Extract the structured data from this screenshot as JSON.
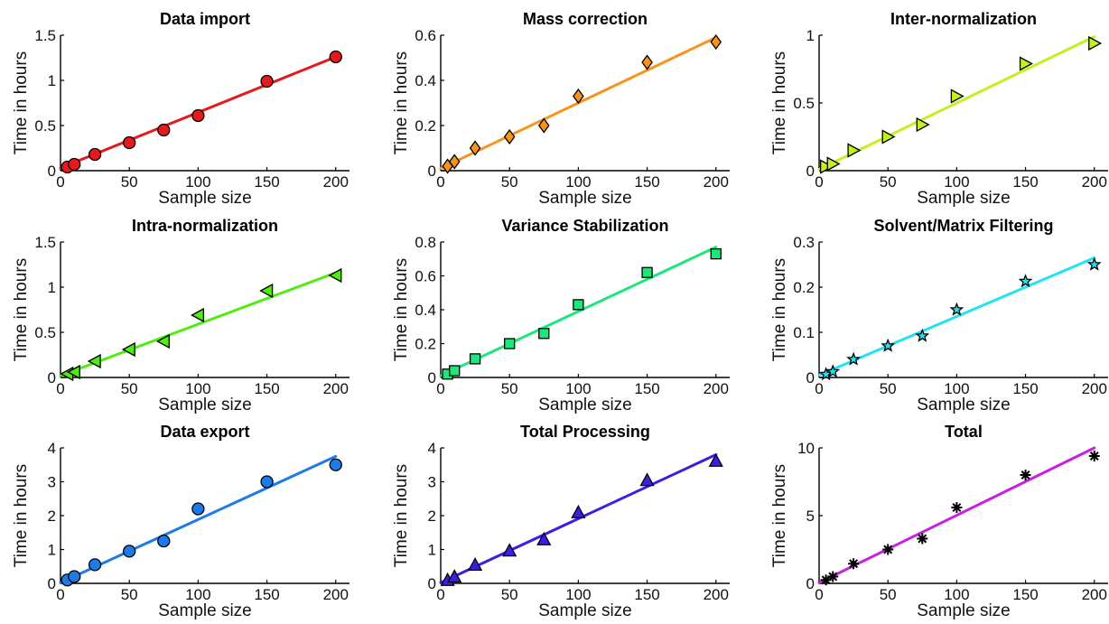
{
  "chart_data": [
    {
      "type": "scatter",
      "title": "Data import",
      "xlabel": "Sample size",
      "ylabel": "Time in hours",
      "xlim": [
        0,
        210
      ],
      "ylim": [
        0,
        1.5
      ],
      "xticks": [
        0,
        50,
        100,
        150,
        200
      ],
      "xtick_labels": [
        "0",
        "50",
        "100",
        "150",
        "200"
      ],
      "yticks": [
        0,
        0.5,
        1,
        1.5
      ],
      "ytick_labels": [
        "0",
        "0.5",
        "1",
        "1.5"
      ],
      "marker": "circle",
      "color": "#e41a1c",
      "series": [
        {
          "x": [
            5,
            10,
            25,
            50,
            75,
            100,
            150,
            200
          ],
          "y": [
            0.04,
            0.07,
            0.18,
            0.31,
            0.45,
            0.61,
            0.99,
            1.26
          ],
          "fit": [
            [
              0,
              0.03
            ],
            [
              200,
              1.26
            ]
          ]
        }
      ]
    },
    {
      "type": "scatter",
      "title": "Mass correction",
      "xlabel": "Sample size",
      "ylabel": "Time in hours",
      "xlim": [
        0,
        210
      ],
      "ylim": [
        0,
        0.6
      ],
      "xticks": [
        0,
        50,
        100,
        150,
        200
      ],
      "xtick_labels": [
        "0",
        "50",
        "100",
        "150",
        "200"
      ],
      "yticks": [
        0,
        0.2,
        0.4,
        0.6
      ],
      "ytick_labels": [
        "0",
        "0.2",
        "0.4",
        "0.6"
      ],
      "marker": "diamond",
      "color": "#f7941d",
      "series": [
        {
          "x": [
            5,
            10,
            25,
            50,
            75,
            100,
            150,
            200
          ],
          "y": [
            0.02,
            0.04,
            0.1,
            0.15,
            0.2,
            0.33,
            0.48,
            0.57
          ],
          "fit": [
            [
              0,
              0.01
            ],
            [
              200,
              0.59
            ]
          ]
        }
      ]
    },
    {
      "type": "scatter",
      "title": "Inter-normalization",
      "xlabel": "Sample size",
      "ylabel": "Time in hours",
      "xlim": [
        0,
        210
      ],
      "ylim": [
        0,
        1
      ],
      "xticks": [
        0,
        50,
        100,
        150,
        200
      ],
      "xtick_labels": [
        "0",
        "50",
        "100",
        "150",
        "200"
      ],
      "yticks": [
        0,
        0.5,
        1
      ],
      "ytick_labels": [
        "0",
        "0.5",
        "1"
      ],
      "marker": "triangle-right",
      "color": "#c3f021",
      "series": [
        {
          "x": [
            5,
            10,
            25,
            50,
            75,
            100,
            150,
            200
          ],
          "y": [
            0.03,
            0.05,
            0.15,
            0.25,
            0.34,
            0.55,
            0.79,
            0.94
          ],
          "fit": [
            [
              0,
              0.01
            ],
            [
              200,
              0.99
            ]
          ]
        }
      ]
    },
    {
      "type": "scatter",
      "title": "Intra-normalization",
      "xlabel": "Sample size",
      "ylabel": "Time in hours",
      "xlim": [
        0,
        210
      ],
      "ylim": [
        0,
        1.5
      ],
      "xticks": [
        0,
        50,
        100,
        150,
        200
      ],
      "xtick_labels": [
        "0",
        "50",
        "100",
        "150",
        "200"
      ],
      "yticks": [
        0,
        0.5,
        1,
        1.5
      ],
      "ytick_labels": [
        "0",
        "0.5",
        "1",
        "1.5"
      ],
      "marker": "triangle-left",
      "color": "#4ded0f",
      "series": [
        {
          "x": [
            5,
            10,
            25,
            50,
            75,
            100,
            150,
            200
          ],
          "y": [
            0.04,
            0.06,
            0.18,
            0.31,
            0.4,
            0.69,
            0.96,
            1.13
          ],
          "fit": [
            [
              0,
              0.02
            ],
            [
              200,
              1.16
            ]
          ]
        }
      ]
    },
    {
      "type": "scatter",
      "title": "Variance Stabilization",
      "xlabel": "Sample size",
      "ylabel": "Time in hours",
      "xlim": [
        0,
        210
      ],
      "ylim": [
        0,
        0.8
      ],
      "xticks": [
        0,
        50,
        100,
        150,
        200
      ],
      "xtick_labels": [
        "0",
        "50",
        "100",
        "150",
        "200"
      ],
      "yticks": [
        0,
        0.2,
        0.4,
        0.6,
        0.8
      ],
      "ytick_labels": [
        "0",
        "0.2",
        "0.4",
        "0.6",
        "0.8"
      ],
      "marker": "square",
      "color": "#1de67c",
      "series": [
        {
          "x": [
            5,
            10,
            25,
            50,
            75,
            100,
            150,
            200
          ],
          "y": [
            0.02,
            0.04,
            0.11,
            0.2,
            0.26,
            0.43,
            0.62,
            0.73
          ],
          "fit": [
            [
              0,
              0.01
            ],
            [
              200,
              0.77
            ]
          ]
        }
      ]
    },
    {
      "type": "scatter",
      "title": "Solvent/Matrix Filtering",
      "xlabel": "Sample size",
      "ylabel": "Time in hours",
      "xlim": [
        0,
        210
      ],
      "ylim": [
        0,
        0.3
      ],
      "xticks": [
        0,
        50,
        100,
        150,
        200
      ],
      "xtick_labels": [
        "0",
        "50",
        "100",
        "150",
        "200"
      ],
      "yticks": [
        0,
        0.1,
        0.2,
        0.3
      ],
      "ytick_labels": [
        "0",
        "0.1",
        "0.2",
        "0.3"
      ],
      "marker": "star",
      "color": "#22e3f2",
      "series": [
        {
          "x": [
            5,
            10,
            25,
            50,
            75,
            100,
            150,
            200
          ],
          "y": [
            0.007,
            0.013,
            0.04,
            0.07,
            0.092,
            0.15,
            0.213,
            0.25
          ],
          "fit": [
            [
              0,
              0.005
            ],
            [
              200,
              0.265
            ]
          ]
        }
      ]
    },
    {
      "type": "scatter",
      "title": "Data export",
      "xlabel": "Sample size",
      "ylabel": "Time in hours",
      "xlim": [
        0,
        210
      ],
      "ylim": [
        0,
        4
      ],
      "xticks": [
        0,
        50,
        100,
        150,
        200
      ],
      "xtick_labels": [
        "0",
        "50",
        "100",
        "150",
        "200"
      ],
      "yticks": [
        0,
        1,
        2,
        3,
        4
      ],
      "ytick_labels": [
        "0",
        "1",
        "2",
        "3",
        "4"
      ],
      "marker": "circle",
      "color": "#1e7ae6",
      "series": [
        {
          "x": [
            5,
            10,
            25,
            50,
            75,
            100,
            150,
            200
          ],
          "y": [
            0.1,
            0.2,
            0.55,
            0.95,
            1.25,
            2.2,
            3.0,
            3.5
          ],
          "fit": [
            [
              0,
              0.02
            ],
            [
              200,
              3.75
            ]
          ]
        }
      ]
    },
    {
      "type": "scatter",
      "title": "Total Processing",
      "xlabel": "Sample size",
      "ylabel": "Time in hours",
      "xlim": [
        0,
        210
      ],
      "ylim": [
        0,
        4
      ],
      "xticks": [
        0,
        50,
        100,
        150,
        200
      ],
      "xtick_labels": [
        "0",
        "50",
        "100",
        "150",
        "200"
      ],
      "yticks": [
        0,
        1,
        2,
        3,
        4
      ],
      "ytick_labels": [
        "0",
        "1",
        "2",
        "3",
        "4"
      ],
      "marker": "triangle-up",
      "color": "#3b1fe0",
      "series": [
        {
          "x": [
            5,
            10,
            25,
            50,
            75,
            100,
            150,
            200
          ],
          "y": [
            0.1,
            0.2,
            0.55,
            0.97,
            1.3,
            2.1,
            3.05,
            3.62
          ],
          "fit": [
            [
              0,
              0.02
            ],
            [
              200,
              3.8
            ]
          ]
        }
      ]
    },
    {
      "type": "scatter",
      "title": "Total",
      "xlabel": "Sample size",
      "ylabel": "Time in hours",
      "xlim": [
        0,
        210
      ],
      "ylim": [
        0,
        10
      ],
      "xticks": [
        0,
        50,
        100,
        150,
        200
      ],
      "xtick_labels": [
        "0",
        "50",
        "100",
        "150",
        "200"
      ],
      "yticks": [
        0,
        5,
        10
      ],
      "ytick_labels": [
        "0",
        "5",
        "10"
      ],
      "marker": "asterisk",
      "color": "#c81fe0",
      "series": [
        {
          "x": [
            5,
            10,
            25,
            50,
            75,
            100,
            150,
            200
          ],
          "y": [
            0.25,
            0.5,
            1.45,
            2.5,
            3.3,
            5.6,
            8.0,
            9.4
          ],
          "fit": [
            [
              0,
              0.05
            ],
            [
              200,
              10.0
            ]
          ]
        }
      ]
    }
  ]
}
